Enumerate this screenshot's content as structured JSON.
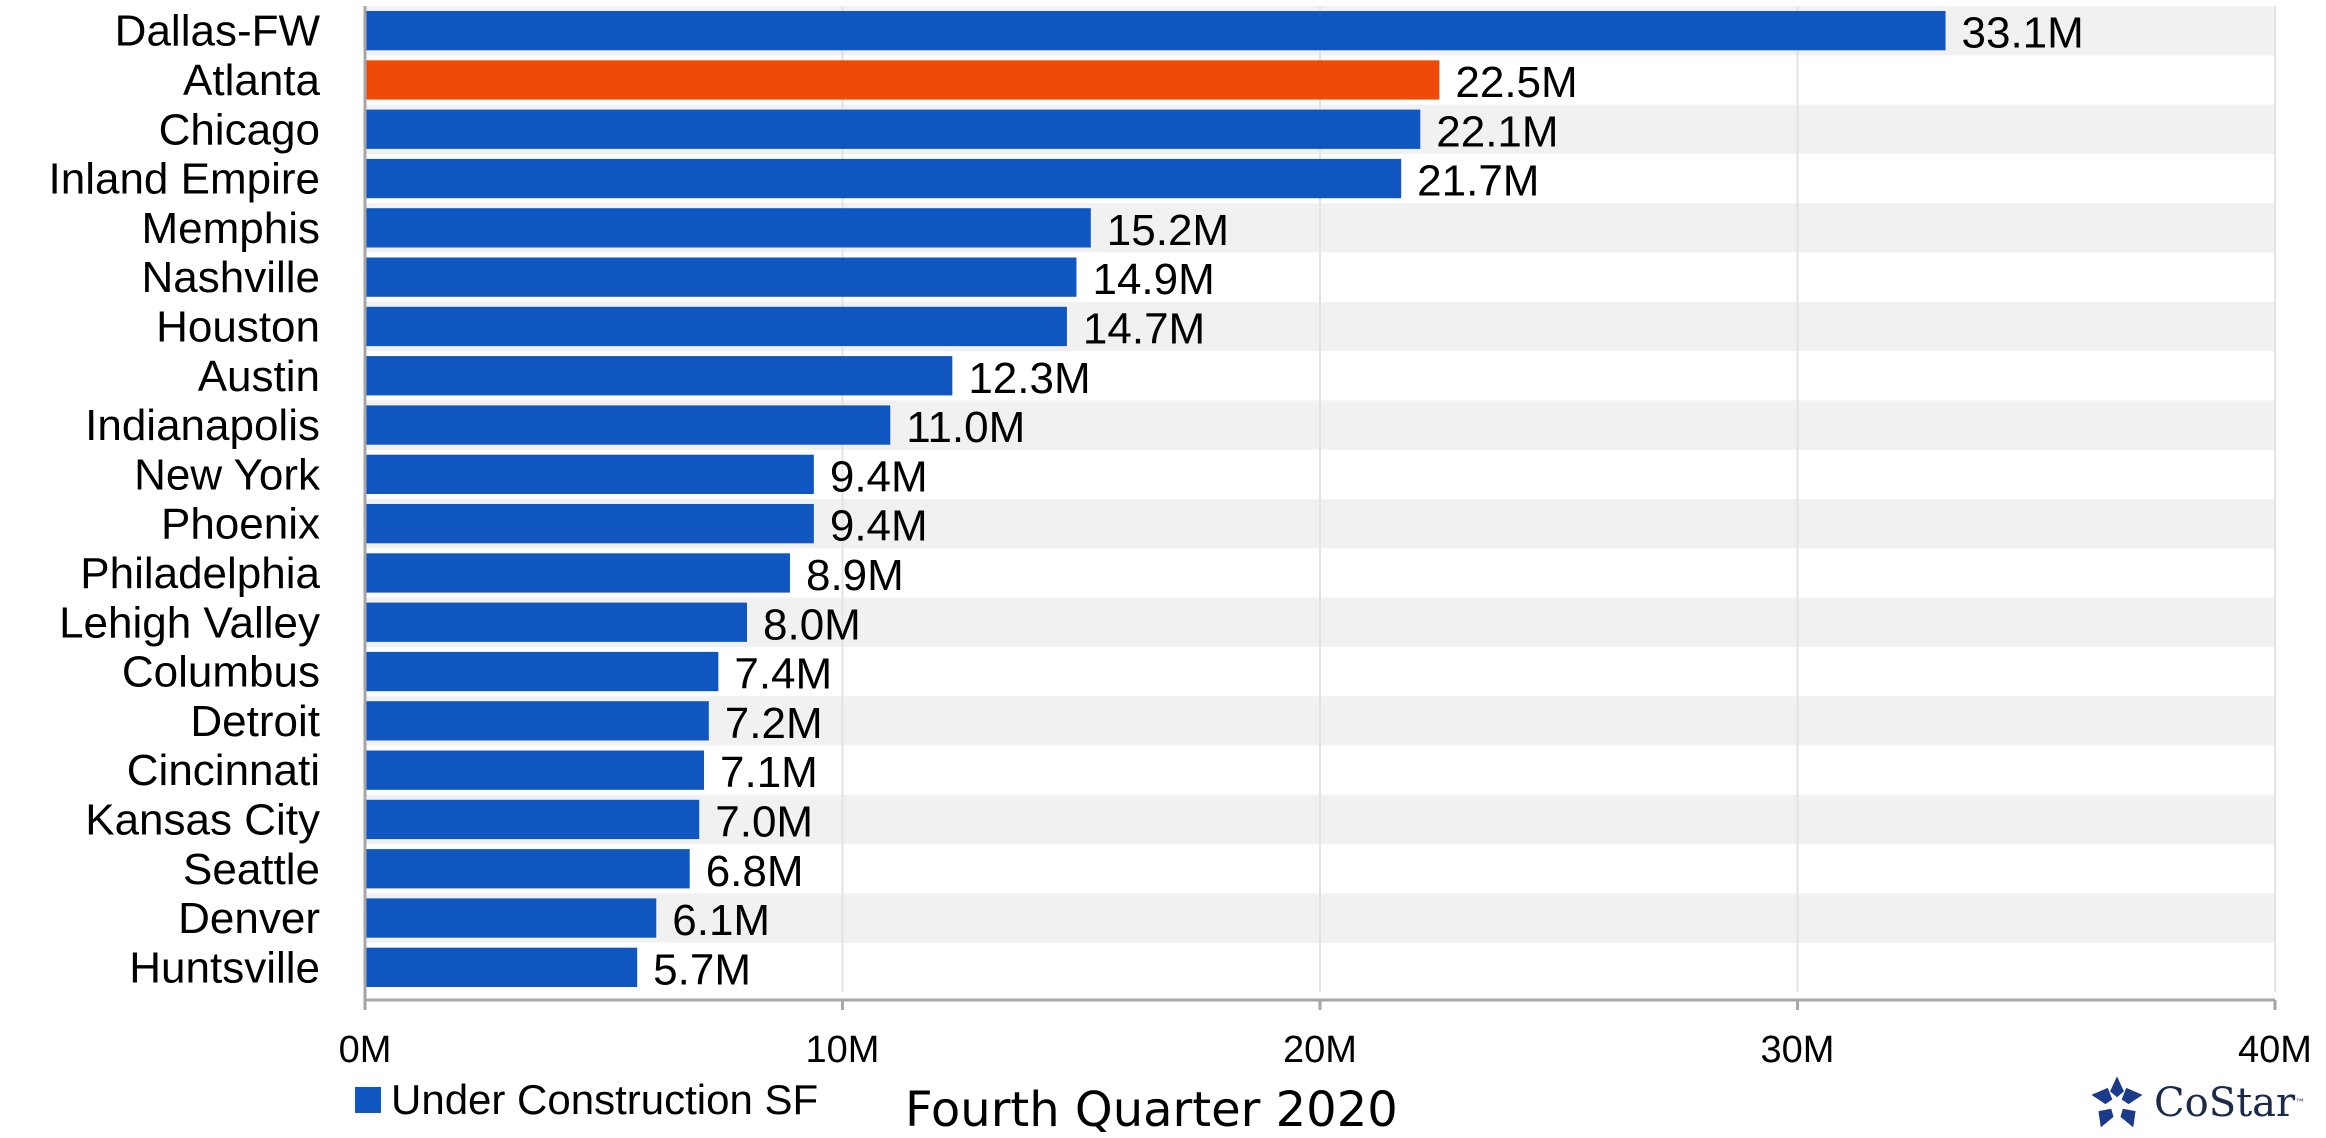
{
  "chart_data": {
    "type": "bar",
    "orientation": "horizontal",
    "categories": [
      "Dallas-FW",
      "Atlanta",
      "Chicago",
      "Inland Empire",
      "Memphis",
      "Nashville",
      "Houston",
      "Austin",
      "Indianapolis",
      "New York",
      "Phoenix",
      "Philadelphia",
      "Lehigh Valley",
      "Columbus",
      "Detroit",
      "Cincinnati",
      "Kansas City",
      "Seattle",
      "Denver",
      "Huntsville"
    ],
    "values": [
      33.1,
      22.5,
      22.1,
      21.7,
      15.2,
      14.9,
      14.7,
      12.3,
      11.0,
      9.4,
      9.4,
      8.9,
      8.0,
      7.4,
      7.2,
      7.1,
      7.0,
      6.8,
      6.1,
      5.7
    ],
    "value_labels": [
      "33.1M",
      "22.5M",
      "22.1M",
      "21.7M",
      "15.2M",
      "14.9M",
      "14.7M",
      "12.3M",
      "11.0M",
      "9.4M",
      "9.4M",
      "8.9M",
      "8.0M",
      "7.4M",
      "7.2M",
      "7.1M",
      "7.0M",
      "6.8M",
      "6.1M",
      "5.7M"
    ],
    "highlight_category": "Atlanta",
    "xlim": [
      0,
      40
    ],
    "x_ticks": [
      0,
      10,
      20,
      30,
      40
    ],
    "x_tick_labels": [
      "0M",
      "10M",
      "20M",
      "30M",
      "40M"
    ],
    "series": [
      {
        "name": "Under Construction SF",
        "values": [
          33.1,
          22.5,
          22.1,
          21.7,
          15.2,
          14.9,
          14.7,
          12.3,
          11.0,
          9.4,
          9.4,
          8.9,
          8.0,
          7.4,
          7.2,
          7.1,
          7.0,
          6.8,
          6.1,
          5.7
        ]
      }
    ],
    "legend_position": "bottom-left",
    "grid": true,
    "colors": {
      "bar": "#0f56c1",
      "highlight": "#f04a08",
      "band": "#f1f1f1",
      "grid": "#e3e3e3",
      "axis": "#a6a6a6"
    }
  },
  "footer": {
    "caption": "Fourth Quarter 2020",
    "legend_label": "Under Construction SF"
  },
  "logo": {
    "text": "CoStar",
    "tm": "™",
    "icon": "costar-star-logo-icon"
  }
}
